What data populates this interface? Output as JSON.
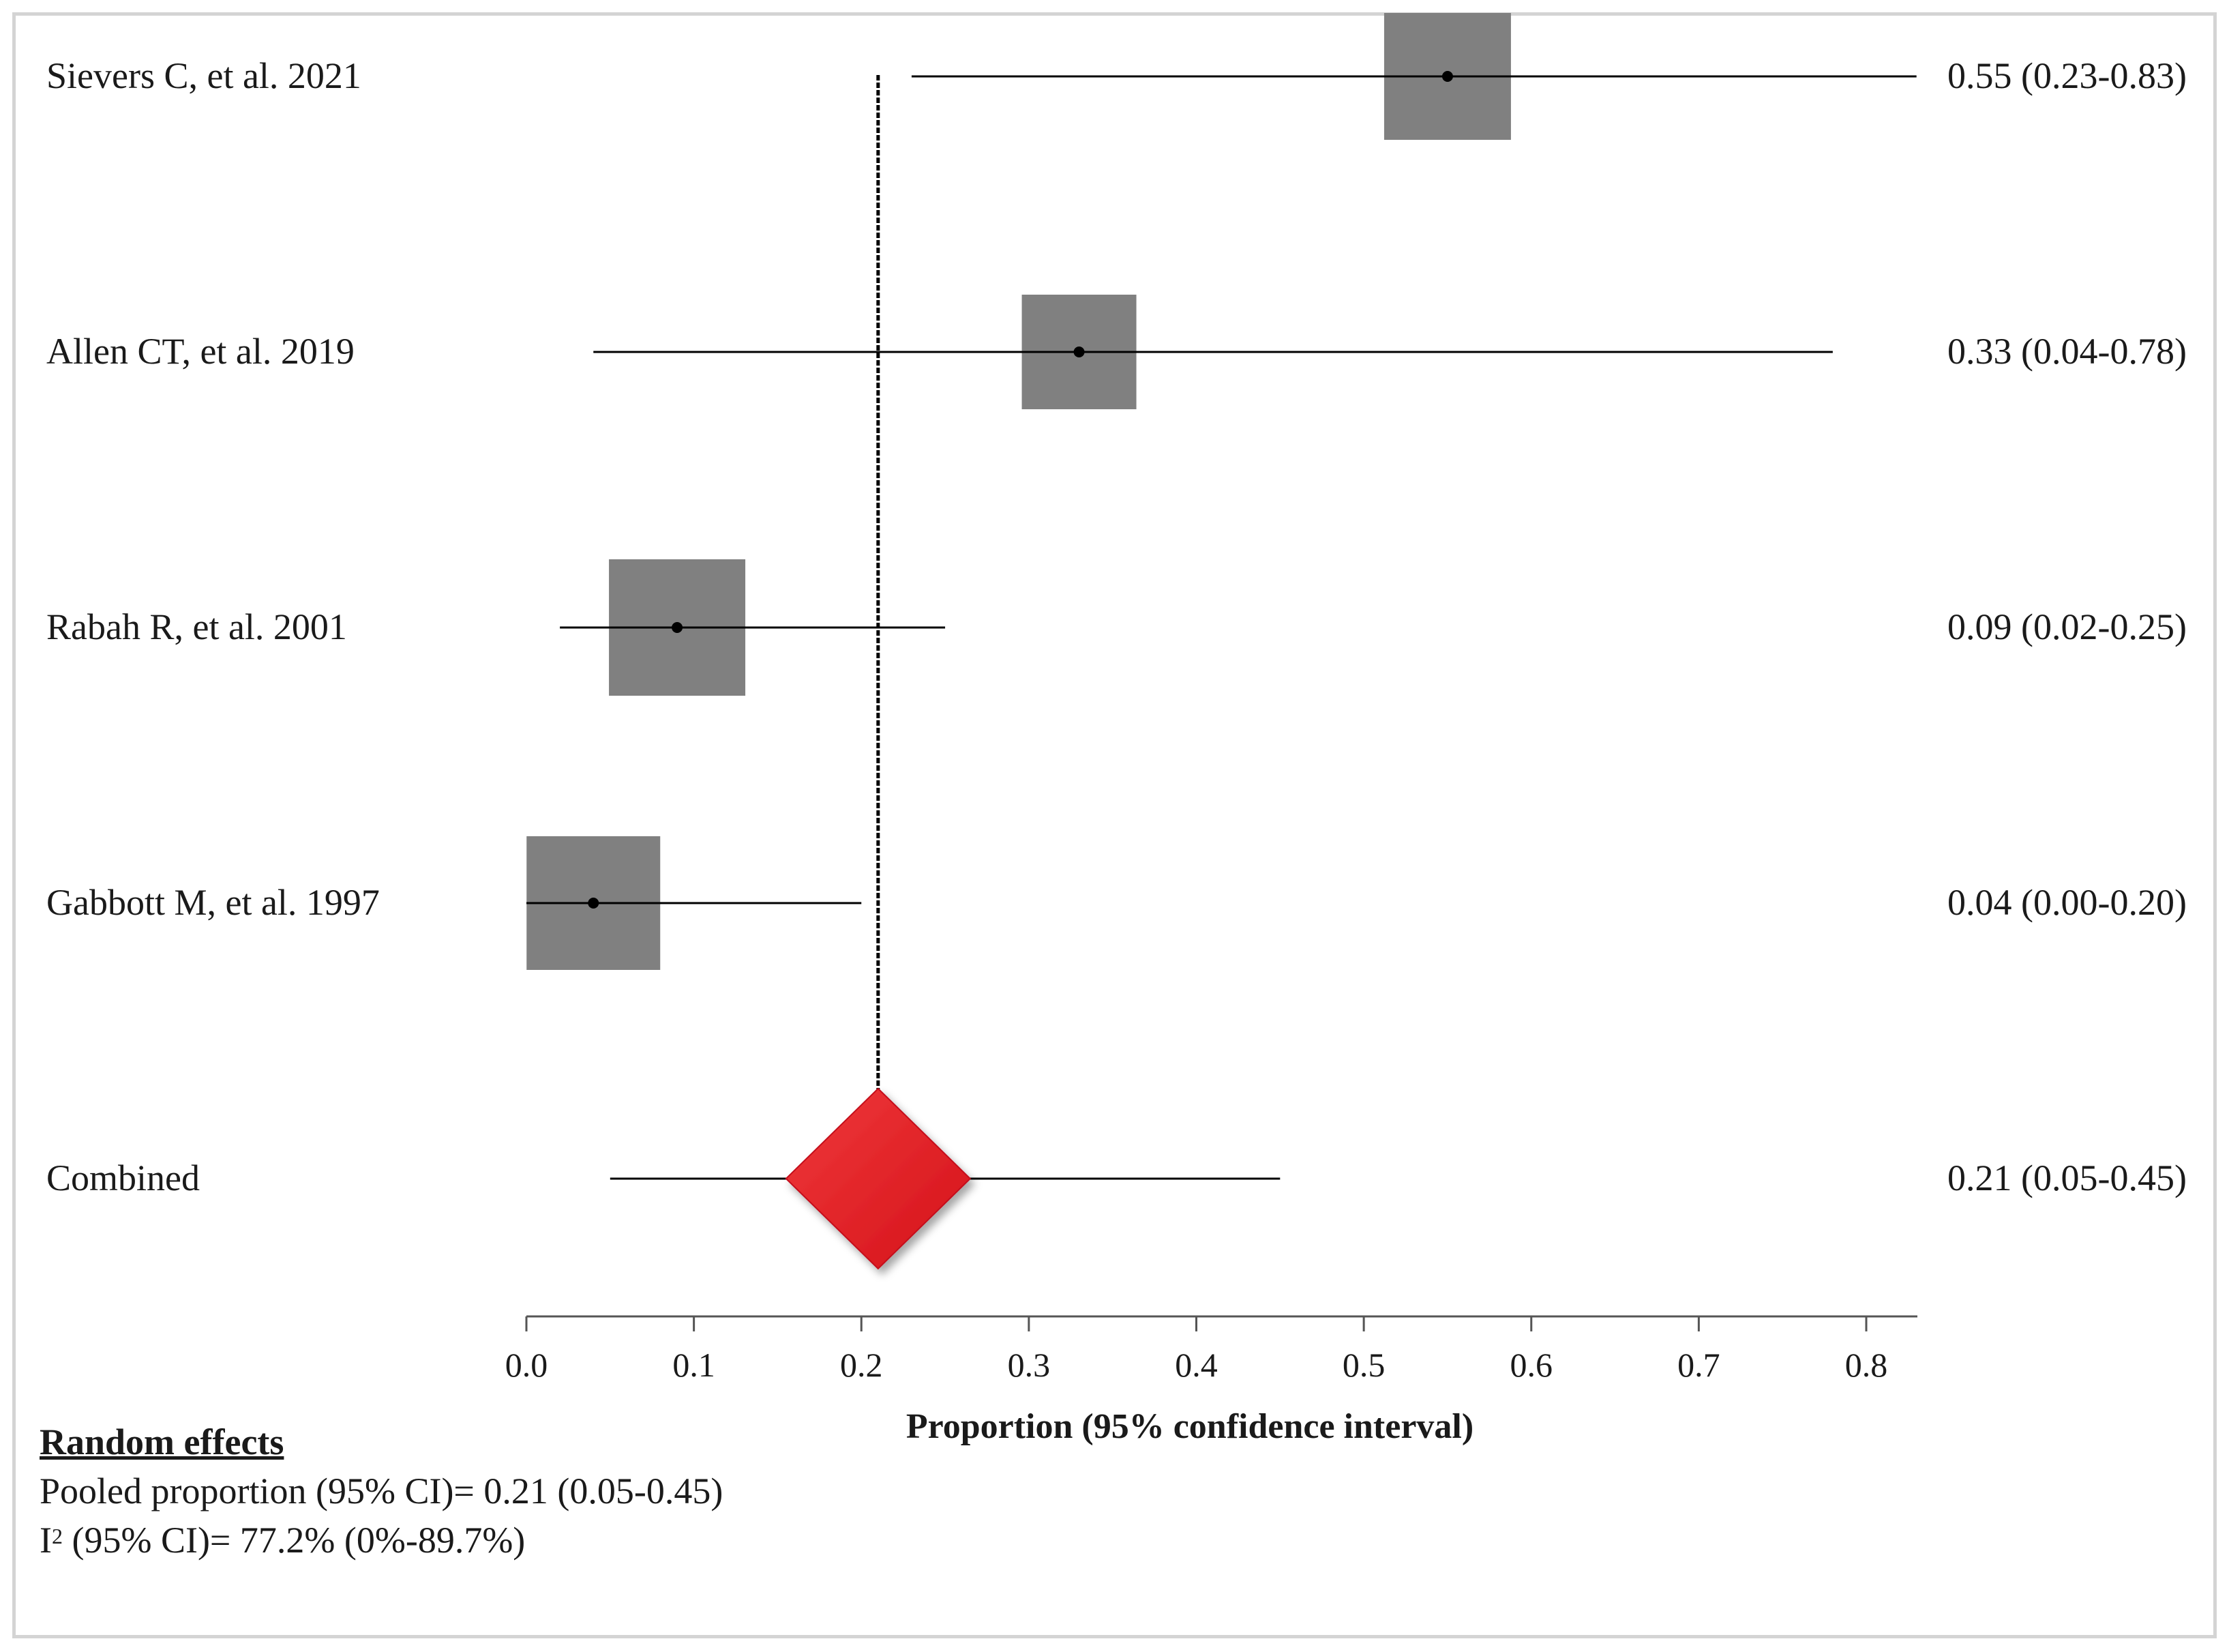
{
  "chart_data": {
    "type": "forest",
    "xlabel": "Proportion (95% confidence interval)",
    "xlim": [
      0.0,
      0.8
    ],
    "ticks": [
      "0.0",
      "0.1",
      "0.2",
      "0.3",
      "0.4",
      "0.5",
      "0.6",
      "0.7",
      "0.8"
    ],
    "tick_values": [
      0.0,
      0.1,
      0.2,
      0.3,
      0.4,
      0.5,
      0.6,
      0.7,
      0.8
    ],
    "reference_line": 0.21,
    "studies": [
      {
        "name": "Sievers C, et al. 2021",
        "estimate": 0.55,
        "lower": 0.23,
        "upper": 0.83,
        "label": "0.55 (0.23-0.83)",
        "weight": 0.93
      },
      {
        "name": "Allen CT, et al. 2019",
        "estimate": 0.33,
        "lower": 0.04,
        "upper": 0.78,
        "label": "0.33 (0.04-0.78)",
        "weight": 0.84
      },
      {
        "name": "Rabah R, et al. 2001",
        "estimate": 0.09,
        "lower": 0.02,
        "upper": 0.25,
        "label": "0.09 (0.02-0.25)",
        "weight": 1.0
      },
      {
        "name": "Gabbott M, et al. 1997",
        "estimate": 0.04,
        "lower": 0.0,
        "upper": 0.2,
        "label": "0.04 (0.00-0.20)",
        "weight": 0.98
      }
    ],
    "combined": {
      "name": "Combined",
      "estimate": 0.21,
      "lower": 0.05,
      "upper": 0.45,
      "label": "0.21 (0.05-0.45)"
    },
    "colors": {
      "box": "#808080",
      "diamond": "#e0181e",
      "line": "#000000"
    }
  },
  "notes": {
    "heading": "Random effects",
    "pooled": "Pooled proportion (95% CI)= 0.21 (0.05-0.45)",
    "i2_symbol": "I",
    "i2_sup": "2",
    "i2_rest": " (95% CI)= 77.2% (0%-89.7%)"
  }
}
